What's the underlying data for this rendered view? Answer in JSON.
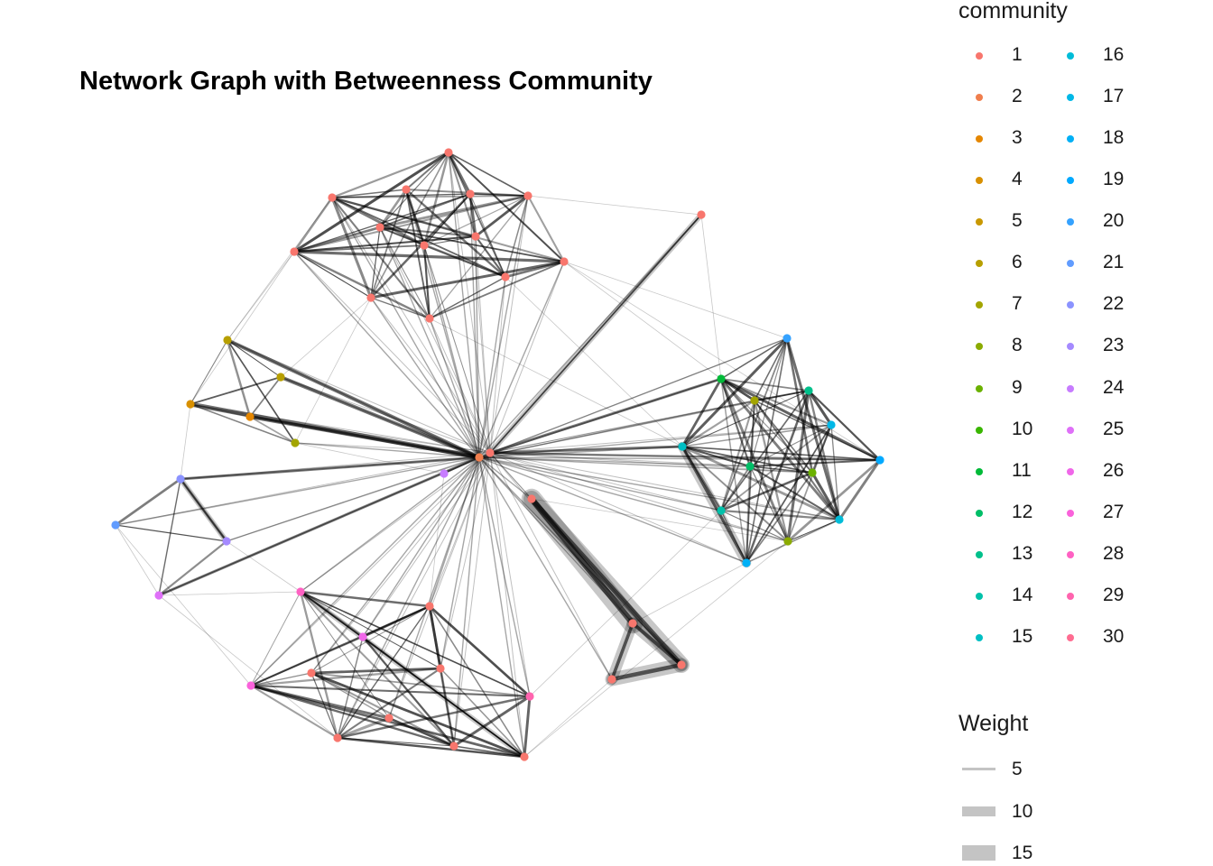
{
  "title": "Network Graph with Betweenness Community",
  "legend": {
    "community_title": "community",
    "weight_title": "Weight",
    "weight_labels": [
      "5",
      "10",
      "15"
    ],
    "community_labels": [
      "1",
      "2",
      "3",
      "4",
      "5",
      "6",
      "7",
      "8",
      "9",
      "10",
      "11",
      "12",
      "13",
      "14",
      "15",
      "16",
      "17",
      "18",
      "19",
      "20",
      "21",
      "22",
      "23",
      "24",
      "25",
      "26",
      "27",
      "28",
      "29",
      "30"
    ],
    "community_colors": [
      "#F8766D",
      "#F07E4D",
      "#E58700",
      "#D89000",
      "#C99800",
      "#B79F00",
      "#A3A500",
      "#8BAB00",
      "#6BB100",
      "#39B600",
      "#00BA38",
      "#00BE67",
      "#00C08B",
      "#00C1AA",
      "#00BFC4",
      "#00BCD8",
      "#00B8E7",
      "#00B0F6",
      "#00A9FF",
      "#35A2FF",
      "#619CFF",
      "#8B93FF",
      "#A58AFF",
      "#C77CFF",
      "#DF70F8",
      "#F067E9",
      "#FA62DB",
      "#FF61C3",
      "#FF64AE",
      "#FF6C91"
    ]
  },
  "chart_data": {
    "type": "network",
    "title": "Network Graph with Betweenness Community",
    "nodes": [
      {
        "id": "h1",
        "community": 2
      },
      {
        "id": "h2",
        "community": 1
      },
      {
        "id": "a1",
        "community": 1
      },
      {
        "id": "a2",
        "community": 1
      },
      {
        "id": "a3",
        "community": 1
      },
      {
        "id": "a4",
        "community": 1
      },
      {
        "id": "a5",
        "community": 1
      },
      {
        "id": "a6",
        "community": 1
      },
      {
        "id": "a7",
        "community": 1
      },
      {
        "id": "a8",
        "community": 1
      },
      {
        "id": "a9",
        "community": 1
      },
      {
        "id": "a10",
        "community": 1
      },
      {
        "id": "a11",
        "community": 1
      },
      {
        "id": "a12",
        "community": 1
      },
      {
        "id": "a13",
        "community": 1
      },
      {
        "id": "iso",
        "community": 1
      },
      {
        "id": "b1",
        "community": 6
      },
      {
        "id": "b2",
        "community": 6
      },
      {
        "id": "b3",
        "community": 4
      },
      {
        "id": "b4",
        "community": 3
      },
      {
        "id": "b5",
        "community": 7
      },
      {
        "id": "c1",
        "community": 22
      },
      {
        "id": "c2",
        "community": 21
      },
      {
        "id": "c3",
        "community": 23
      },
      {
        "id": "c4",
        "community": 25
      },
      {
        "id": "c5",
        "community": 24
      },
      {
        "id": "d1",
        "community": 20
      },
      {
        "id": "d2",
        "community": 11
      },
      {
        "id": "d3",
        "community": 7
      },
      {
        "id": "d4",
        "community": 13
      },
      {
        "id": "d5",
        "community": 17
      },
      {
        "id": "d6",
        "community": 15
      },
      {
        "id": "d7",
        "community": 12
      },
      {
        "id": "d8",
        "community": 9
      },
      {
        "id": "d9",
        "community": 19
      },
      {
        "id": "d10",
        "community": 14
      },
      {
        "id": "d11",
        "community": 16
      },
      {
        "id": "d12",
        "community": 8
      },
      {
        "id": "d13",
        "community": 18
      },
      {
        "id": "t1",
        "community": 1
      },
      {
        "id": "t2",
        "community": 1
      },
      {
        "id": "t3",
        "community": 1
      },
      {
        "id": "t4",
        "community": 1
      },
      {
        "id": "e1",
        "community": 28
      },
      {
        "id": "e2",
        "community": 1
      },
      {
        "id": "e3",
        "community": 26
      },
      {
        "id": "e4",
        "community": 1
      },
      {
        "id": "e5",
        "community": 1
      },
      {
        "id": "e6",
        "community": 27
      },
      {
        "id": "e7",
        "community": 29
      },
      {
        "id": "e8",
        "community": 1
      },
      {
        "id": "e9",
        "community": 1
      },
      {
        "id": "e10",
        "community": 1
      },
      {
        "id": "e11",
        "community": 1
      }
    ],
    "heavy_edges": [
      {
        "from": "t1",
        "to": "t2",
        "weight": 15
      },
      {
        "from": "t1",
        "to": "t3",
        "weight": 12
      },
      {
        "from": "t2",
        "to": "t3",
        "weight": 9
      },
      {
        "from": "t3",
        "to": "t4",
        "weight": 10
      },
      {
        "from": "t2",
        "to": "t4",
        "weight": 8
      },
      {
        "from": "d6",
        "to": "d13",
        "weight": 7
      },
      {
        "from": "e1",
        "to": "e11",
        "weight": 4
      },
      {
        "from": "c1",
        "to": "c3",
        "weight": 4
      },
      {
        "from": "iso",
        "to": "h2",
        "weight": 4
      }
    ]
  }
}
